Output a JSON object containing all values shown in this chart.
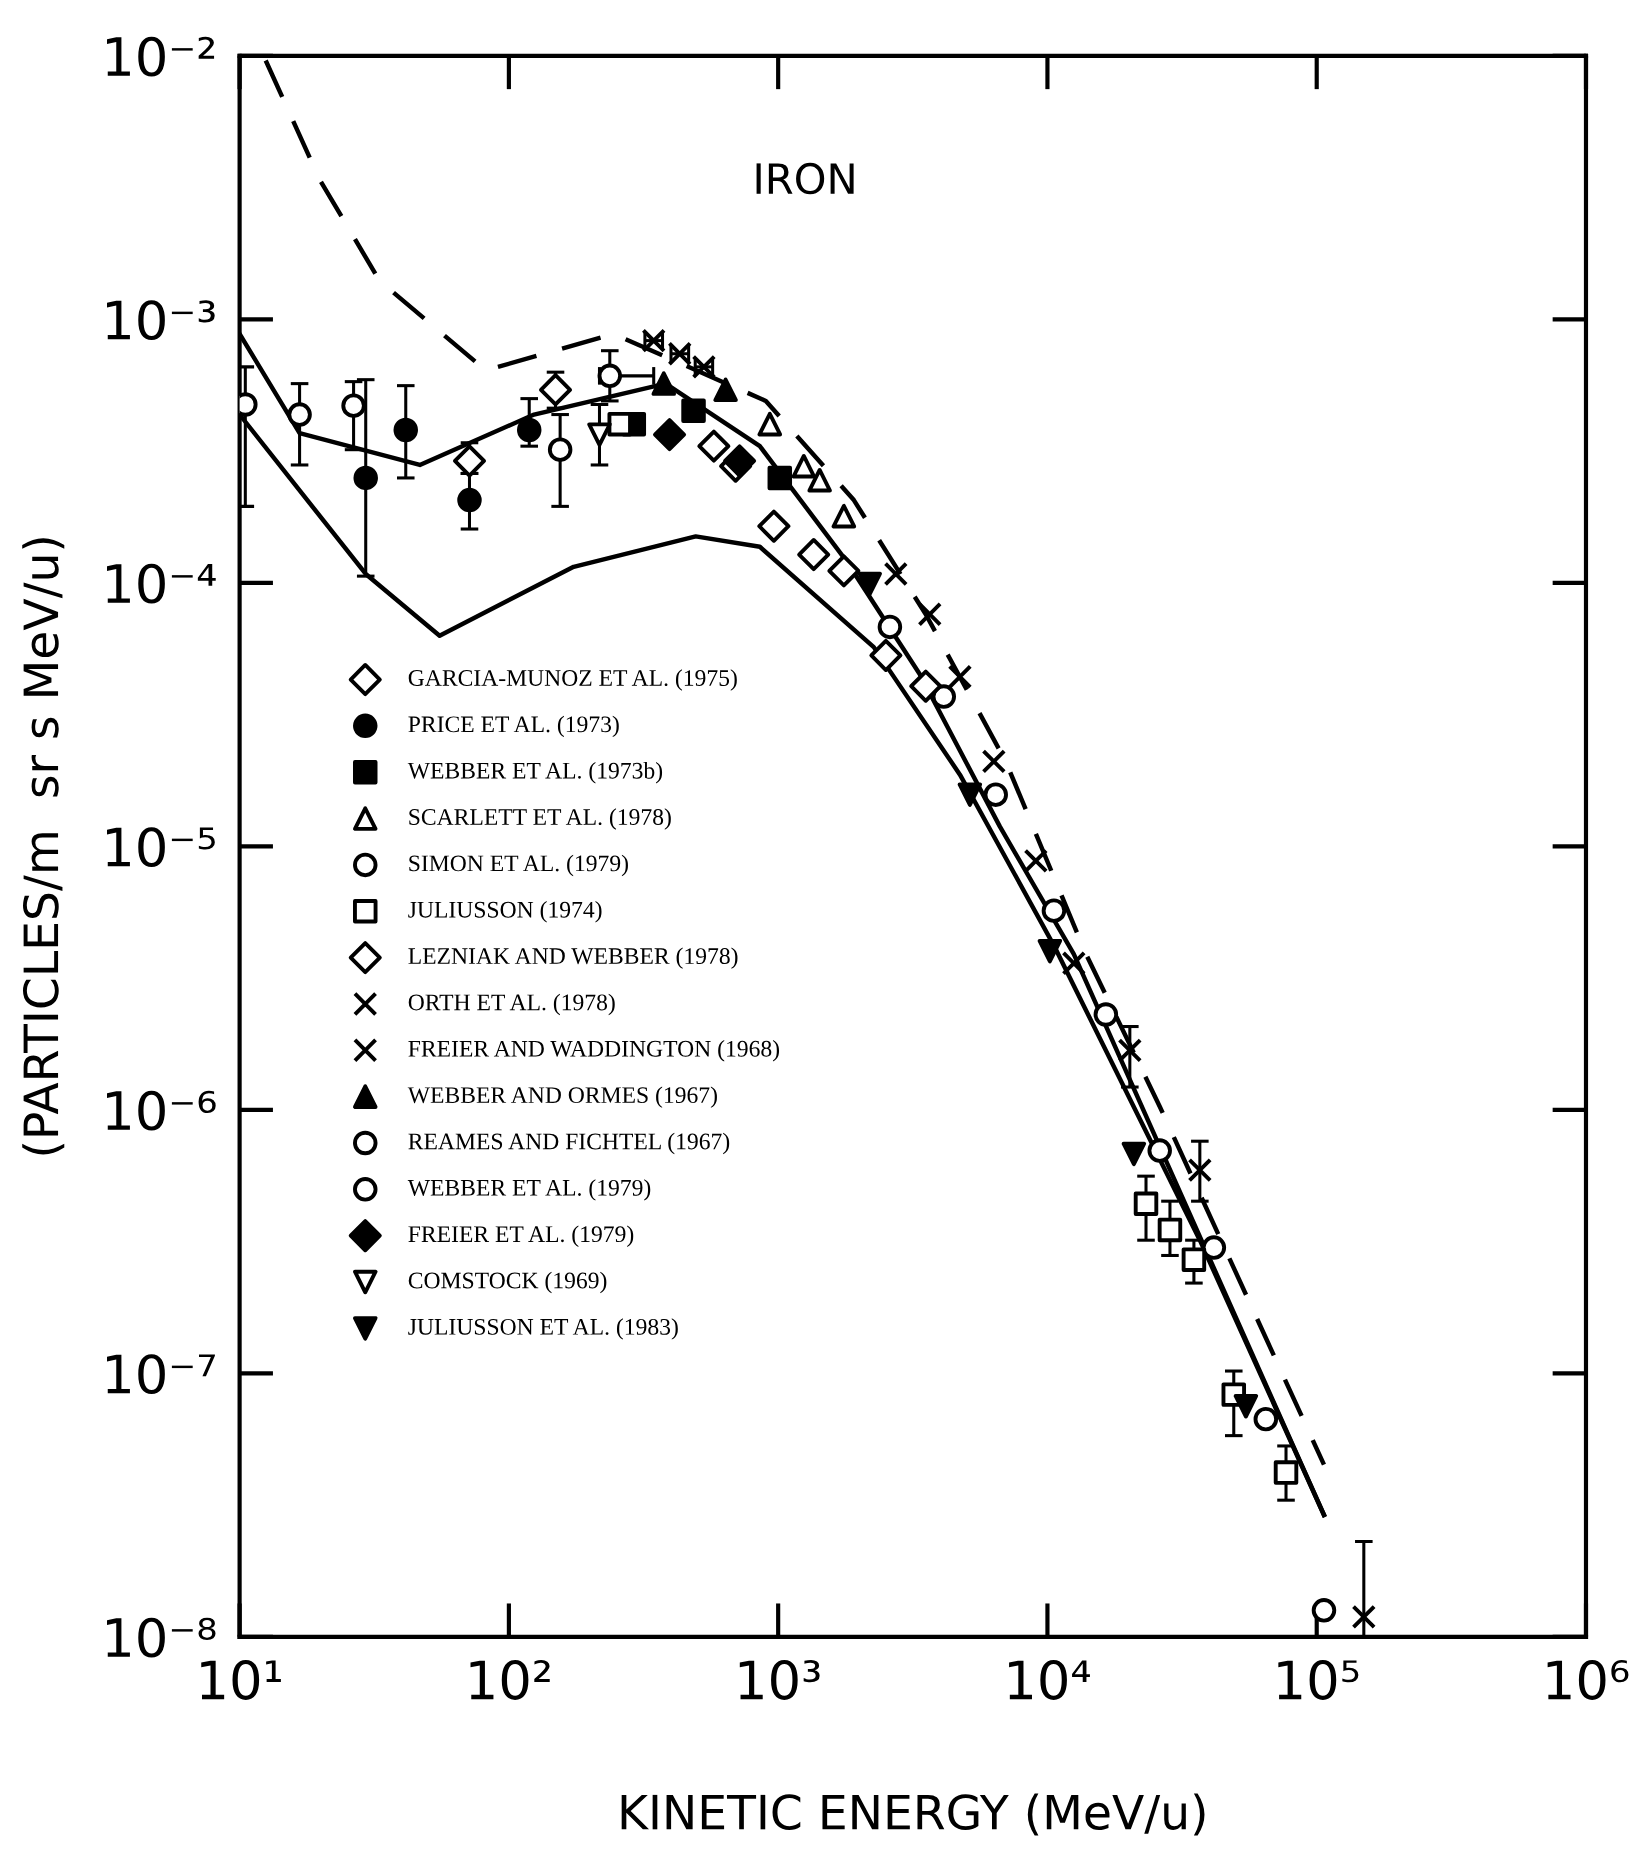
{
  "chart_data": {
    "type": "scatter",
    "title": "IRON",
    "xlabel": "KINETIC ENERGY (MeV/u)",
    "ylabel": "(PARTICLES/m  sr s MeV/u)",
    "log": "xy",
    "grid": false,
    "legend": "left",
    "xlim": [
      10,
      1000000
    ],
    "ylim": [
      1e-08,
      0.01
    ],
    "xticks": [
      {
        "value": 10,
        "label": "10¹"
      },
      {
        "value": 100,
        "label": "10²"
      },
      {
        "value": 1000,
        "label": "10³"
      },
      {
        "value": 10000,
        "label": "10⁴"
      },
      {
        "value": 100000,
        "label": "10⁵"
      },
      {
        "value": 1000000,
        "label": "10⁶"
      }
    ],
    "yticks": [
      {
        "value": 1e-08,
        "label": "10⁻⁸"
      },
      {
        "value": 1e-07,
        "label": "10⁻⁷"
      },
      {
        "value": 1e-06,
        "label": "10⁻⁶"
      },
      {
        "value": 1e-05,
        "label": "10⁻⁵"
      },
      {
        "value": 0.0001,
        "label": "10⁻⁴"
      },
      {
        "value": 0.001,
        "label": "10⁻³"
      },
      {
        "value": 0.01,
        "label": "10⁻²"
      }
    ],
    "series": [
      {
        "name": "GARCIA-MUNOZ ET AL. (1975)",
        "color": "#ffffff",
        "marker": "diamond",
        "x": [
          71.4,
          149
        ],
        "values": [
          0.00029,
          0.00054
        ],
        "errors": [
          [
            0.00026,
            0.00034
          ],
          [
            0.00046,
            0.00063
          ]
        ]
      },
      {
        "name": "PRICE ET AL. (1973)",
        "color": "#000000",
        "marker": "circle",
        "x": [
          29.4,
          41.4,
          71.4,
          119
        ],
        "values": [
          0.00025,
          0.00038,
          0.000206,
          0.00038
        ],
        "errors": [
          [
            0.000106,
            0.00059
          ],
          [
            0.00025,
            0.00056
          ],
          [
            0.00016,
            0.00026
          ],
          [
            0.00033,
            0.0005
          ]
        ]
      },
      {
        "name": "WEBBER ET AL. (1973b)",
        "color": "#000000",
        "marker": "square",
        "x": [
          291,
          485,
          1014
        ],
        "values": [
          0.0004,
          0.00045,
          0.00025
        ]
      },
      {
        "name": "SCARLETT ET AL. (1978)",
        "color": "#ffffff",
        "marker": "triangle",
        "x": [
          931,
          1245,
          1426,
          1754
        ],
        "values": [
          0.0004,
          0.000277,
          0.000245,
          0.000179
        ]
      },
      {
        "name": "SIMON ET AL. (1979)",
        "color": "#ffffff",
        "marker": "circle",
        "x": [
          155,
          2600,
          4121,
          6427,
          10570,
          16480,
          26120,
          41500,
          64710,
          106400
        ],
        "values": [
          0.00032,
          6.8e-05,
          3.7e-05,
          1.57e-05,
          5.7e-06,
          2.3e-06,
          7e-07,
          3e-07,
          6.7e-08,
          1.26e-08
        ],
        "errors": [
          [
            0.000195,
            0.000435
          ],
          null,
          null,
          null,
          null,
          null,
          null,
          null,
          null,
          null
        ]
      },
      {
        "name": "JULIUSSON (1974)",
        "color": "#ffffff",
        "marker": "square",
        "x": [
          258,
          23230,
          28510,
          34990,
          49200,
          76910
        ],
        "values": [
          0.0004,
          4.4e-07,
          3.5e-07,
          2.7e-07,
          8.3e-08,
          4.2e-08
        ],
        "errors": [
          null,
          [
            3.2e-07,
            5.6e-07
          ],
          [
            2.8e-07,
            4.5e-07
          ],
          [
            2.2e-07,
            3.2e-07
          ],
          [
            5.8e-08,
            1.02e-07
          ],
          [
            3.3e-08,
            5.3e-08
          ]
        ]
      },
      {
        "name": "LEZNIAK AND WEBBER (1978)",
        "color": "#ffffff",
        "marker": "diamond",
        "x": [
          577,
          695,
          964,
          1355,
          1754,
          2512,
          3532
        ],
        "values": [
          0.00033,
          0.000277,
          0.000164,
          0.000128,
          0.000111,
          5.3e-05,
          4.05e-05
        ]
      },
      {
        "name": "ORTH ET AL. (1978)",
        "color": "#000000",
        "marker": "cross",
        "x": [
          2735,
          3656,
          4732,
          6324,
          9057,
          12530,
          20230,
          36810,
          149600
        ],
        "values": [
          0.000108,
          7.6e-05,
          4.4e-05,
          2.1e-05,
          8.8e-06,
          3.6e-06,
          1.68e-06,
          5.9e-07,
          1.19e-08
        ],
        "errors": [
          null,
          null,
          null,
          null,
          null,
          null,
          [
            1.22e-06,
            2.07e-06
          ],
          [
            4.5e-07,
            7.6e-07
          ],
          [
            1e-08,
            2.3e-08
          ]
        ]
      },
      {
        "name": "FREIER AND WADDINGTON (1968)",
        "color": "#000000",
        "marker": "cross",
        "x": [
          345,
          431,
          530
        ],
        "values": [
          0.00083,
          0.00074,
          0.00066
        ],
        "xerrors": [
          [
            320,
            372
          ],
          [
            400,
            465
          ],
          [
            492,
            571
          ]
        ]
      },
      {
        "name": "WEBBER AND ORMES (1967)",
        "color": "#000000",
        "marker": "triangle",
        "x": [
          376,
          638
        ],
        "values": [
          0.00057,
          0.00054
        ]
      },
      {
        "name": "REAMES AND FICHTEL (1967)",
        "color": "#ffffff",
        "marker": "circle",
        "x": [
          237
        ],
        "values": [
          0.00061
        ],
        "errors": [
          [
            0.00049,
            0.00076
          ]
        ],
        "xerrors": [
          [
            217,
            345
          ]
        ]
      },
      {
        "name": "WEBBER ET AL. (1979)",
        "color": "#ffffff",
        "marker": "circle",
        "x": [
          10.5,
          16.7,
          26.5
        ],
        "values": [
          0.000475,
          0.000435,
          0.00047
        ],
        "errors": [
          [
            0.000195,
            0.00066
          ],
          [
            0.00028,
            0.00057
          ],
          [
            0.00032,
            0.00058
          ]
        ]
      },
      {
        "name": "FREIER ET AL. (1979)",
        "color": "#000000",
        "marker": "diamond",
        "x": [
          395,
          719
        ],
        "values": [
          0.000365,
          0.00029
        ]
      },
      {
        "name": "COMSTOCK (1969)",
        "color": "#ffffff",
        "x": [
          217
        ],
        "values": [
          0.000365
        ],
        "errors": [
          [
            0.00028,
            0.000475
          ]
        ]
      },
      {
        "name": "JULIUSSON ET AL. (1983)",
        "color": "#000000",
        "x": [
          2188,
          5152,
          10210,
          20940,
          54580
        ],
        "values": [
          9.9e-05,
          1.57e-05,
          4e-06,
          6.8e-07,
          7.5e-08
        ]
      },
      {
        "type": "line",
        "color": "#000000",
        "line_style": "dashed",
        "x": [
          12.5,
          19.8,
          33.1,
          82,
          245,
          900,
          1910,
          3532,
          7000,
          13900,
          26120,
          106400
        ],
        "values": [
          0.0096,
          0.0034,
          0.0014,
          0.00064,
          0.00088,
          0.00049,
          0.000206,
          7.6e-05,
          2.1e-05,
          3.9e-06,
          1.03e-06,
          4.5e-08
        ]
      },
      {
        "type": "line",
        "color": "#000000",
        "line_style": "solid",
        "x": [
          10,
          16.7,
          46.7,
          124,
          382,
          855,
          1782,
          3357,
          6653,
          12530,
          106400
        ],
        "values": [
          0.00088,
          0.00037,
          0.00028,
          0.000435,
          0.00057,
          0.00033,
          0.000122,
          4.5e-05,
          1.19e-05,
          3.9e-06,
          2.9e-08
        ]
      },
      {
        "type": "line",
        "color": "#000000",
        "line_style": "solid",
        "x": [
          10,
          29.4,
          55.3,
          174,
          494,
          855,
          2265,
          4732,
          10570,
          36810,
          106400
        ],
        "values": [
          0.000435,
          0.000108,
          6.3e-05,
          0.000115,
          0.00015,
          0.000137,
          5.7e-05,
          1.87e-05,
          4.2e-06,
          3.2e-07,
          2.9e-08
        ]
      }
    ]
  }
}
